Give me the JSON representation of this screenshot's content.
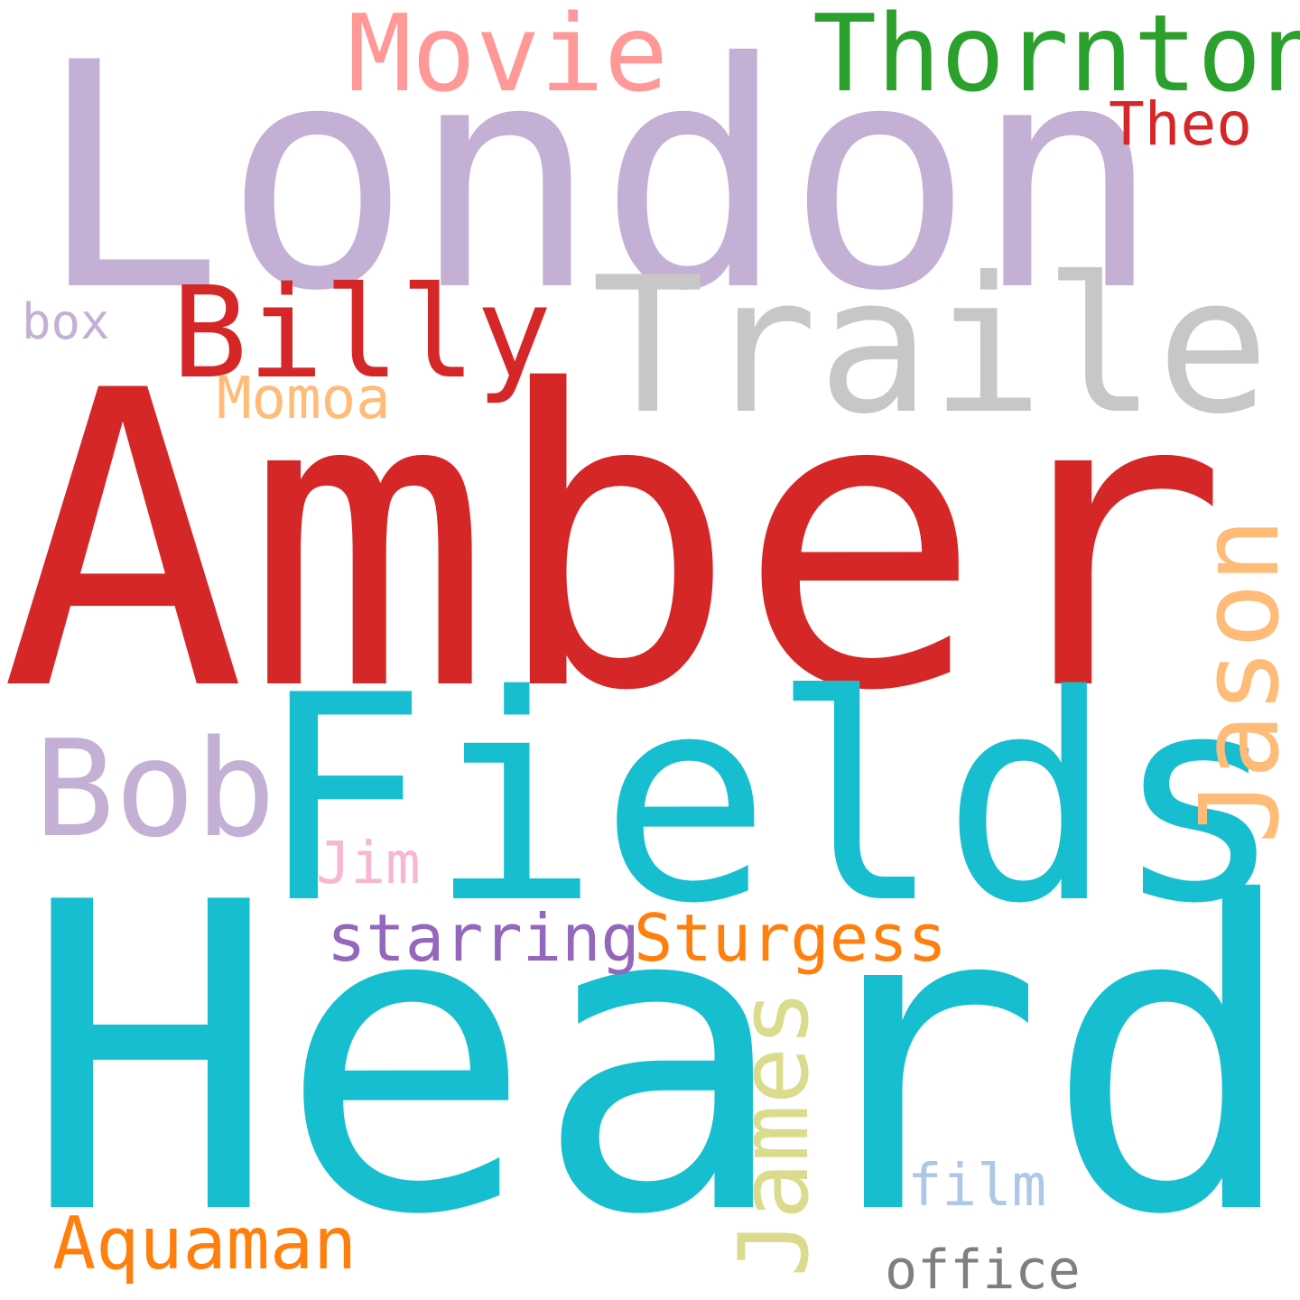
{
  "words": {
    "amber": {
      "text": "Amber",
      "color": "#d62728"
    },
    "heard": {
      "text": "Heard",
      "color": "#17becf"
    },
    "london": {
      "text": "London",
      "color": "#c5b0d5"
    },
    "fields": {
      "text": "Fields",
      "color": "#17becf"
    },
    "trailer": {
      "text": "Trailer",
      "color": "#c7c7c7"
    },
    "billy": {
      "text": "Billy",
      "color": "#d62728"
    },
    "bob": {
      "text": "Bob",
      "color": "#c5b0d5"
    },
    "thornton": {
      "text": "Thornton",
      "color": "#2ca02c"
    },
    "movie": {
      "text": "Movie",
      "color": "#ff9896"
    },
    "jason": {
      "text": "Jason",
      "color": "#ffbb78"
    },
    "james": {
      "text": "James",
      "color": "#dbdb8d"
    },
    "sturgess": {
      "text": "Sturgess",
      "color": "#ff7f0e"
    },
    "starring": {
      "text": "starring",
      "color": "#9467bd"
    },
    "aquaman": {
      "text": "Aquaman",
      "color": "#ff7f0e"
    },
    "theo": {
      "text": "Theo",
      "color": "#d62728"
    },
    "momoa": {
      "text": "Momoa",
      "color": "#ffbb78"
    },
    "film": {
      "text": "film",
      "color": "#aec7e8"
    },
    "office": {
      "text": "office",
      "color": "#7f7f7f"
    },
    "jim": {
      "text": "Jim",
      "color": "#f7b6d2"
    },
    "box": {
      "text": "box",
      "color": "#c5b0d5"
    }
  }
}
